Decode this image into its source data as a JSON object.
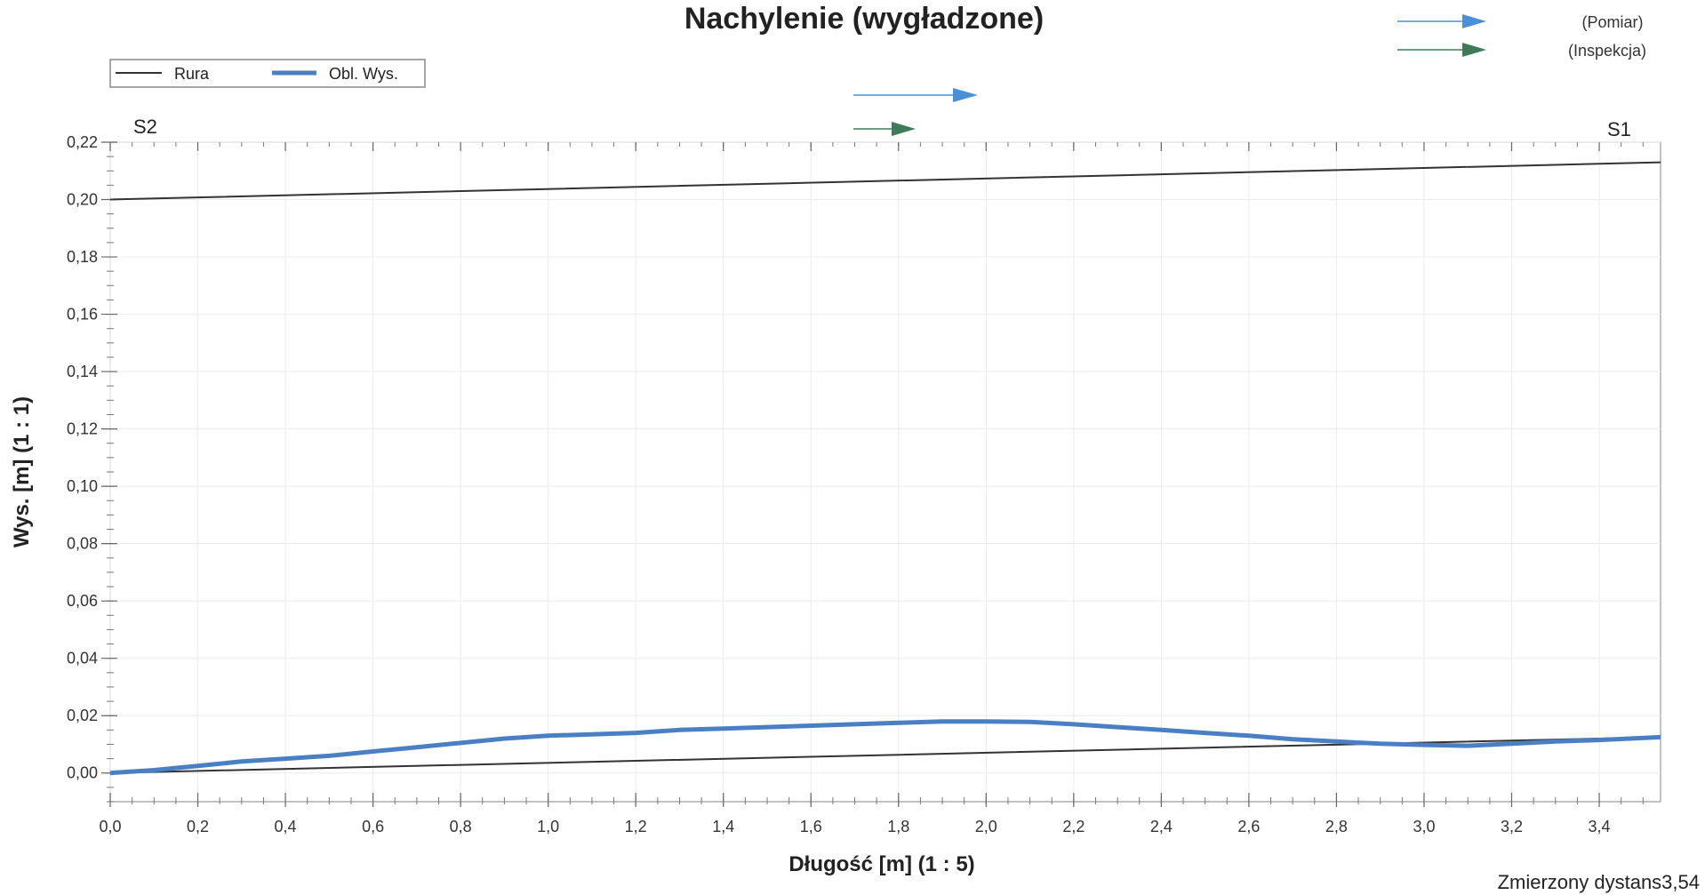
{
  "chart_data": {
    "type": "line",
    "title": "Nachylenie (wygładzone)",
    "xlabel": "Długość [m] (1 : 5)",
    "ylabel": "Wys. [m] (1 : 1)",
    "xlim": [
      0,
      3.54
    ],
    "ylim": [
      -0.01,
      0.22
    ],
    "x_ticks": [
      "0,0",
      "0,2",
      "0,4",
      "0,6",
      "0,8",
      "1,0",
      "1,2",
      "1,4",
      "1,6",
      "1,8",
      "2,0",
      "2,2",
      "2,4",
      "2,6",
      "2,8",
      "3,0",
      "3,2",
      "3,4"
    ],
    "x_tick_values": [
      0,
      0.2,
      0.4,
      0.6,
      0.8,
      1.0,
      1.2,
      1.4,
      1.6,
      1.8,
      2.0,
      2.2,
      2.4,
      2.6,
      2.8,
      3.0,
      3.2,
      3.4
    ],
    "y_ticks": [
      "0,00",
      "0,02",
      "0,04",
      "0,06",
      "0,08",
      "0,10",
      "0,12",
      "0,14",
      "0,16",
      "0,18",
      "0,20",
      "0,22"
    ],
    "y_tick_values": [
      0,
      0.02,
      0.04,
      0.06,
      0.08,
      0.1,
      0.12,
      0.14,
      0.16,
      0.18,
      0.2,
      0.22
    ],
    "grid": true,
    "legend_position": "top-left",
    "series": [
      {
        "name": "Rura",
        "color": "#333333",
        "lines": [
          {
            "x": [
              0,
              3.54
            ],
            "y": [
              0.2,
              0.213
            ]
          },
          {
            "x": [
              0,
              3.54
            ],
            "y": [
              0.0,
              0.0125
            ]
          }
        ]
      },
      {
        "name": "Obl. Wys.",
        "color": "#4a7fc4",
        "lines": [
          {
            "x": [
              0,
              0.1,
              0.2,
              0.3,
              0.4,
              0.5,
              0.6,
              0.7,
              0.8,
              0.9,
              1.0,
              1.1,
              1.2,
              1.3,
              1.4,
              1.5,
              1.6,
              1.7,
              1.8,
              1.9,
              2.0,
              2.1,
              2.2,
              2.3,
              2.4,
              2.5,
              2.6,
              2.7,
              2.8,
              2.9,
              3.0,
              3.1,
              3.2,
              3.3,
              3.4,
              3.54
            ],
            "y": [
              0.0,
              0.001,
              0.0025,
              0.004,
              0.005,
              0.006,
              0.0075,
              0.009,
              0.0105,
              0.012,
              0.013,
              0.0135,
              0.014,
              0.015,
              0.0155,
              0.016,
              0.0165,
              0.017,
              0.0175,
              0.018,
              0.018,
              0.0178,
              0.017,
              0.016,
              0.015,
              0.014,
              0.013,
              0.0118,
              0.011,
              0.0102,
              0.0098,
              0.0095,
              0.0102,
              0.011,
              0.0115,
              0.0125
            ]
          }
        ]
      }
    ],
    "annotations": {
      "start_station": "S2",
      "end_station": "S1"
    }
  },
  "direction_legend": [
    {
      "label": "(Pomiar)",
      "color": "#4a8fd8"
    },
    {
      "label": "(Inspekcja)",
      "color": "#3f7a5a"
    }
  ],
  "footer": {
    "measured_distance": "Zmierzony dystans3,54"
  }
}
